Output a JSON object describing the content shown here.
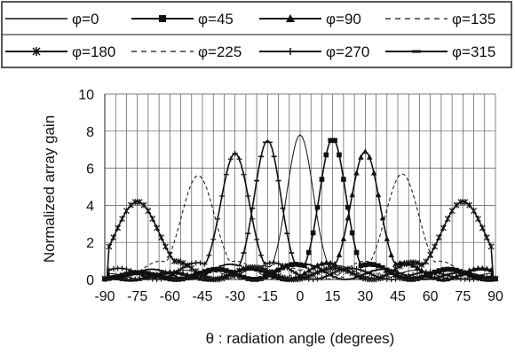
{
  "chart_data": {
    "type": "line",
    "title": "",
    "xlabel": "θ : radiation angle  (degrees)",
    "ylabel": "Normalized array gain",
    "xlim": [
      -90,
      90
    ],
    "ylim": [
      0,
      10
    ],
    "xticks": [
      -90,
      -75,
      -60,
      -45,
      -30,
      -15,
      0,
      15,
      30,
      45,
      60,
      75,
      90
    ],
    "yticks": [
      0,
      2,
      4,
      6,
      8,
      10
    ],
    "grid": "vertical lines every 5 degrees; horizontal lines at y ticks",
    "legend_position": "top, boxed, two rows",
    "legend_rows": [
      [
        {
          "label": "φ=0",
          "style": "solid-thin"
        },
        {
          "label": "φ=45",
          "style": "square-marker"
        },
        {
          "label": "φ=90",
          "style": "triangle-marker"
        },
        {
          "label": "φ=135",
          "style": "dashed"
        }
      ],
      [
        {
          "label": "φ=180",
          "style": "asterisk-marker"
        },
        {
          "label": "φ=225",
          "style": "dashed"
        },
        {
          "label": "φ=270",
          "style": "plus-marker"
        },
        {
          "label": "φ=315",
          "style": "dash-marker"
        }
      ]
    ],
    "series": [
      {
        "name": "φ=0",
        "marker": "none",
        "peak_angle": 0,
        "peak_value": 7.8,
        "width": 11,
        "side_level": 0.9
      },
      {
        "name": "φ=45",
        "marker": "square",
        "peak_angle": 15,
        "peak_value": 7.6,
        "width": 11,
        "side_level": 1.0
      },
      {
        "name": "φ=90",
        "marker": "triangle",
        "peak_angle": 30,
        "peak_value": 6.9,
        "width": 12,
        "side_level": 1.1
      },
      {
        "name": "φ=135",
        "marker": "none",
        "peak_angle": 47,
        "peak_value": 5.7,
        "width": 14,
        "side_level": 1.2
      },
      {
        "name": "φ=180",
        "marker": "asterisk",
        "peak_angles": [
          -75,
          75
        ],
        "peak_value": 4.2,
        "width": 18,
        "side_level": 1.2
      },
      {
        "name": "φ=225",
        "marker": "none",
        "peak_angle": -47,
        "peak_value": 5.6,
        "width": 14,
        "side_level": 1.2
      },
      {
        "name": "φ=270",
        "marker": "plus",
        "peak_angle": -30,
        "peak_value": 6.8,
        "width": 12,
        "side_level": 1.1
      },
      {
        "name": "φ=315",
        "marker": "dash",
        "peak_angle": -15,
        "peak_value": 7.5,
        "width": 11,
        "side_level": 1.0
      }
    ]
  }
}
